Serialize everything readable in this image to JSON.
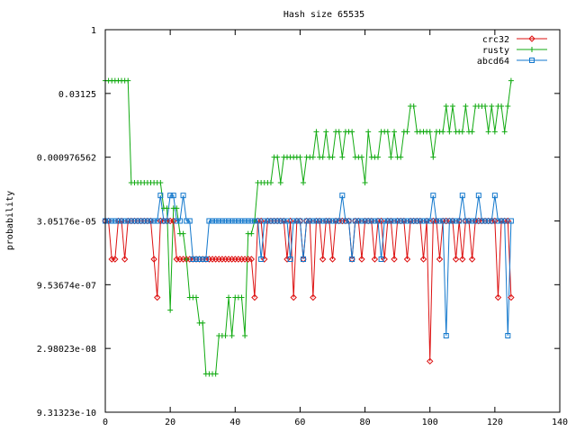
{
  "chart_data": {
    "type": "line",
    "title": "Hash size 65535",
    "xlabel": "",
    "ylabel": "probability",
    "xlim": [
      0,
      140
    ],
    "ylim_log2": [
      -30,
      0
    ],
    "y_scale": "log2",
    "grid": false,
    "legend_position": "top-right",
    "x_ticks": [
      0,
      20,
      40,
      60,
      80,
      100,
      120,
      140
    ],
    "x_tick_labels": [
      "0",
      "20",
      "40",
      "60",
      "80",
      "100",
      "120",
      "140"
    ],
    "y_ticks_log2": [
      0,
      -5,
      -10,
      -15,
      -20,
      -25,
      -30
    ],
    "y_tick_labels": [
      "1",
      "0.03125",
      "0.000976562",
      "3.05176e-05",
      "9.53674e-07",
      "2.98023e-08",
      "9.31323e-10"
    ],
    "series": [
      {
        "name": "crc32",
        "color": "#dd1111",
        "marker": "diamond",
        "x": [
          0,
          1,
          2,
          3,
          4,
          5,
          6,
          7,
          8,
          9,
          10,
          11,
          12,
          13,
          14,
          15,
          16,
          17,
          18,
          19,
          20,
          21,
          22,
          23,
          24,
          25,
          26,
          27,
          28,
          29,
          30,
          31,
          32,
          33,
          34,
          35,
          36,
          37,
          38,
          39,
          40,
          41,
          42,
          43,
          44,
          45,
          46,
          47,
          48,
          49,
          50,
          51,
          52,
          53,
          54,
          55,
          56,
          57,
          58,
          59,
          60,
          61,
          62,
          63,
          64,
          65,
          66,
          67,
          68,
          69,
          70,
          71,
          72,
          73,
          74,
          75,
          76,
          77,
          78,
          79,
          80,
          81,
          82,
          83,
          84,
          85,
          86,
          87,
          88,
          89,
          90,
          91,
          92,
          93,
          94,
          95,
          96,
          97,
          98,
          99,
          100,
          101,
          102,
          103,
          104,
          105,
          106,
          107,
          108,
          109,
          110,
          111,
          112,
          113,
          114,
          115,
          116,
          117,
          118,
          119,
          120,
          121,
          122,
          123,
          124,
          125
        ],
        "y_log2": [
          -15,
          -15,
          -18,
          -18,
          -15,
          -15,
          -18,
          -15,
          -15,
          -15,
          -15,
          -15,
          -15,
          -15,
          -15,
          -18,
          -21,
          -15,
          -15,
          -15,
          -15,
          -15,
          -18,
          -18,
          -18,
          -18,
          -18,
          -18,
          -18,
          -18,
          -18,
          -18,
          -18,
          -18,
          -18,
          -18,
          -18,
          -18,
          -18,
          -18,
          -18,
          -18,
          -18,
          -18,
          -18,
          -18,
          -21,
          -15,
          -15,
          -18,
          -15,
          -15,
          -15,
          -15,
          -15,
          -15,
          -18,
          -15,
          -21,
          -15,
          -15,
          -18,
          -15,
          -15,
          -21,
          -15,
          -15,
          -18,
          -15,
          -15,
          -18,
          -15,
          -15,
          -15,
          -15,
          -15,
          -18,
          -15,
          -15,
          -18,
          -15,
          -15,
          -15,
          -18,
          -15,
          -15,
          -18,
          -15,
          -15,
          -18,
          -15,
          -15,
          -15,
          -18,
          -15,
          -15,
          -15,
          -15,
          -18,
          -15,
          -26,
          -15,
          -15,
          -18,
          -15,
          -15,
          -15,
          -15,
          -18,
          -15,
          -18,
          -15,
          -15,
          -18,
          -15,
          -15,
          -15,
          -15,
          -15,
          -15,
          -15,
          -21,
          -15,
          -15,
          -15,
          -21
        ]
      },
      {
        "name": "rusty",
        "color": "#11aa11",
        "marker": "plus",
        "x": [
          0,
          1,
          2,
          3,
          4,
          5,
          6,
          7,
          8,
          9,
          10,
          11,
          12,
          13,
          14,
          15,
          16,
          17,
          18,
          19,
          20,
          21,
          22,
          23,
          24,
          25,
          26,
          27,
          28,
          29,
          30,
          31,
          32,
          33,
          34,
          35,
          36,
          37,
          38,
          39,
          40,
          41,
          42,
          43,
          44,
          45,
          46,
          47,
          48,
          49,
          50,
          51,
          52,
          53,
          54,
          55,
          56,
          57,
          58,
          59,
          60,
          61,
          62,
          63,
          64,
          65,
          66,
          67,
          68,
          69,
          70,
          71,
          72,
          73,
          74,
          75,
          76,
          77,
          78,
          79,
          80,
          81,
          82,
          83,
          84,
          85,
          86,
          87,
          88,
          89,
          90,
          91,
          92,
          93,
          94,
          95,
          96,
          97,
          98,
          99,
          100,
          101,
          102,
          103,
          104,
          105,
          106,
          107,
          108,
          109,
          110,
          111,
          112,
          113,
          114,
          115,
          116,
          117,
          118,
          119,
          120,
          121,
          122,
          123,
          124,
          125
        ],
        "y_log2": [
          -4,
          -4,
          -4,
          -4,
          -4,
          -4,
          -4,
          -4,
          -12,
          -12,
          -12,
          -12,
          -12,
          -12,
          -12,
          -12,
          -12,
          -12,
          -14,
          -14,
          -22,
          -14,
          -14,
          -16,
          -16,
          -18,
          -21,
          -21,
          -21,
          -23,
          -23,
          -27,
          -27,
          -27,
          -27,
          -24,
          -24,
          -24,
          -21,
          -24,
          -21,
          -21,
          -21,
          -24,
          -16,
          -16,
          -15,
          -12,
          -12,
          -12,
          -12,
          -12,
          -10,
          -10,
          -12,
          -10,
          -10,
          -10,
          -10,
          -10,
          -10,
          -12,
          -10,
          -10,
          -10,
          -8,
          -10,
          -10,
          -8,
          -10,
          -10,
          -8,
          -8,
          -10,
          -8,
          -8,
          -8,
          -10,
          -10,
          -10,
          -12,
          -8,
          -10,
          -10,
          -10,
          -8,
          -8,
          -8,
          -10,
          -8,
          -10,
          -10,
          -8,
          -8,
          -6,
          -6,
          -8,
          -8,
          -8,
          -8,
          -8,
          -10,
          -8,
          -8,
          -8,
          -6,
          -8,
          -6,
          -8,
          -8,
          -8,
          -6,
          -8,
          -8,
          -6,
          -6,
          -6,
          -6,
          -8,
          -6,
          -8,
          -6,
          -6,
          -8,
          -6,
          -4
        ]
      },
      {
        "name": "abcd64",
        "color": "#1177cc",
        "marker": "square",
        "x": [
          0,
          1,
          2,
          3,
          4,
          5,
          6,
          7,
          8,
          9,
          10,
          11,
          12,
          13,
          14,
          15,
          16,
          17,
          18,
          19,
          20,
          21,
          22,
          23,
          24,
          25,
          26,
          27,
          28,
          29,
          30,
          31,
          32,
          33,
          34,
          35,
          36,
          37,
          38,
          39,
          40,
          41,
          42,
          43,
          44,
          45,
          46,
          47,
          48,
          49,
          50,
          51,
          52,
          53,
          54,
          55,
          56,
          57,
          58,
          59,
          60,
          61,
          62,
          63,
          64,
          65,
          66,
          67,
          68,
          69,
          70,
          71,
          72,
          73,
          74,
          75,
          76,
          77,
          78,
          79,
          80,
          81,
          82,
          83,
          84,
          85,
          86,
          87,
          88,
          89,
          90,
          91,
          92,
          93,
          94,
          95,
          96,
          97,
          98,
          99,
          100,
          101,
          102,
          103,
          104,
          105,
          106,
          107,
          108,
          109,
          110,
          111,
          112,
          113,
          114,
          115,
          116,
          117,
          118,
          119,
          120,
          121,
          122,
          123,
          124,
          125
        ],
        "y_log2": [
          -15,
          -15,
          -15,
          -15,
          -15,
          -15,
          -15,
          -15,
          -15,
          -15,
          -15,
          -15,
          -15,
          -15,
          -15,
          -15,
          -15,
          -13,
          -15,
          -15,
          -13,
          -13,
          -15,
          -15,
          -13,
          -15,
          -15,
          -18,
          -18,
          -18,
          -18,
          -18,
          -15,
          -15,
          -15,
          -15,
          -15,
          -15,
          -15,
          -15,
          -15,
          -15,
          -15,
          -15,
          -15,
          -15,
          -15,
          -15,
          -18,
          -15,
          -15,
          -15,
          -15,
          -15,
          -15,
          -15,
          -15,
          -18,
          -15,
          -15,
          -15,
          -18,
          -15,
          -15,
          -15,
          -15,
          -15,
          -15,
          -15,
          -15,
          -15,
          -15,
          -15,
          -13,
          -15,
          -15,
          -18,
          -15,
          -15,
          -15,
          -15,
          -15,
          -15,
          -15,
          -15,
          -18,
          -15,
          -15,
          -15,
          -15,
          -15,
          -15,
          -15,
          -15,
          -15,
          -15,
          -15,
          -15,
          -15,
          -15,
          -15,
          -13,
          -15,
          -15,
          -15,
          -24,
          -15,
          -15,
          -15,
          -15,
          -13,
          -15,
          -15,
          -15,
          -15,
          -13,
          -15,
          -15,
          -15,
          -15,
          -13,
          -15,
          -15,
          -15,
          -24,
          -15
        ]
      }
    ]
  }
}
